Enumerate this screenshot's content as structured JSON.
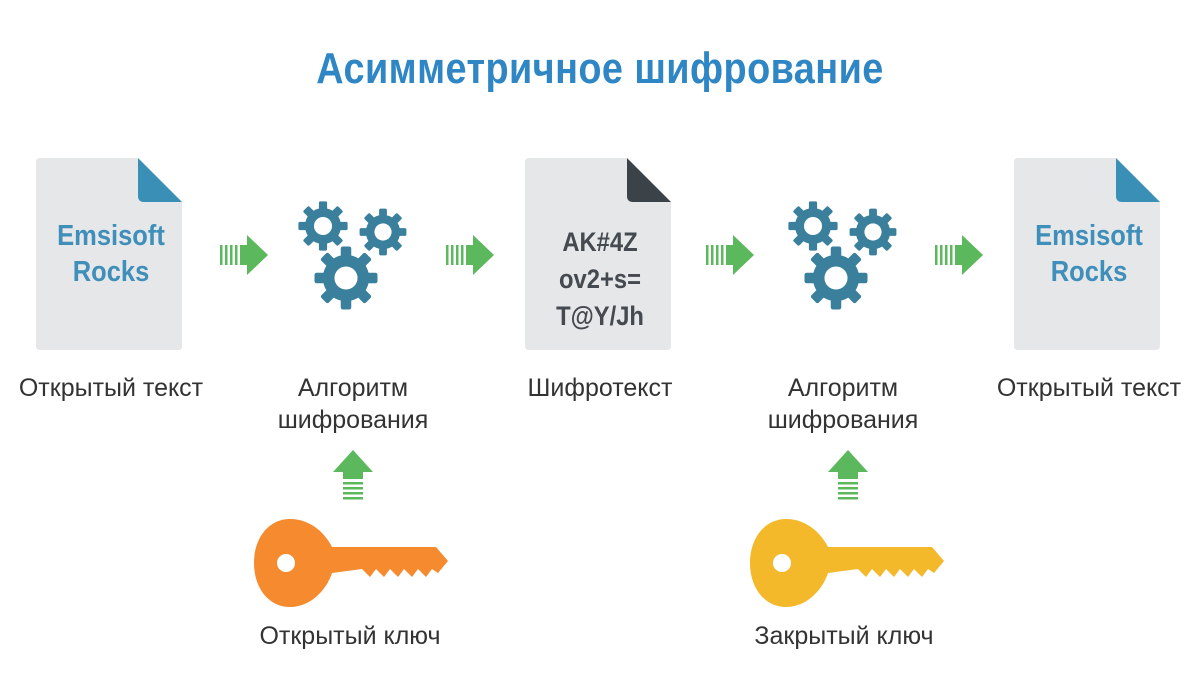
{
  "title": "Асимметричное шифрование",
  "colors": {
    "title": "#2f86c4",
    "document": "#e6e7e8",
    "fold_plain": "#3a8fb7",
    "fold_cipher": "#3c4348",
    "gear": "#3a7f9c",
    "arrow": "#5cb85c",
    "public_key": "#f58a2e",
    "private_key": "#f3b92b"
  },
  "nodes": {
    "plaintext_doc": {
      "lines": [
        "Emsisoft",
        "Rocks"
      ],
      "label": "Открытый текст"
    },
    "encrypt_algorithm": {
      "label_lines": [
        "Алгоритм",
        "шифрования"
      ]
    },
    "ciphertext_doc": {
      "lines": [
        "AK#4Z",
        "ov2+s=",
        "T@Y/Jh"
      ],
      "label": "Шифротекст"
    },
    "decrypt_algorithm": {
      "label_lines": [
        "Алгоритм",
        "шифрования"
      ]
    },
    "result_doc": {
      "lines": [
        "Emsisoft",
        "Rocks"
      ],
      "label": "Открытый текст"
    }
  },
  "keys": {
    "public": {
      "label": "Открытый ключ"
    },
    "private": {
      "label": "Закрытый ключ"
    }
  }
}
